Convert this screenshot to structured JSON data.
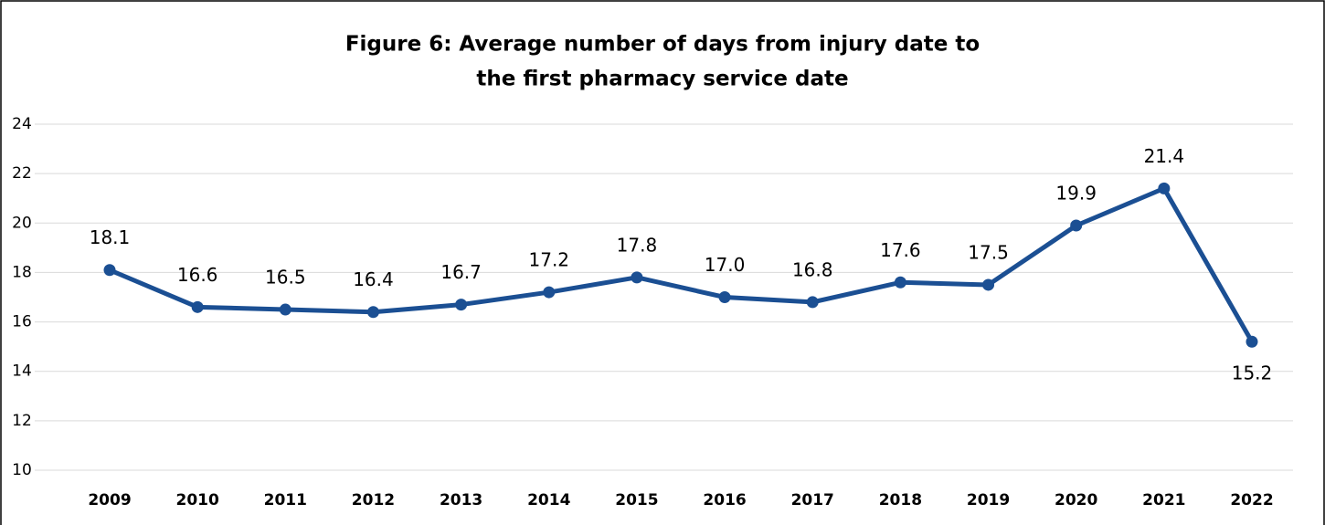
{
  "chart_data": {
    "type": "line",
    "title": [
      "Figure 6: Average number of days from injury date to",
      "the first pharmacy service date"
    ],
    "categories": [
      "2009",
      "2010",
      "2011",
      "2012",
      "2013",
      "2014",
      "2015",
      "2016",
      "2017",
      "2018",
      "2019",
      "2020",
      "2021",
      "2022"
    ],
    "series": [
      {
        "color": "#1b4f93",
        "values": [
          18.1,
          16.6,
          16.5,
          16.4,
          16.7,
          17.2,
          17.8,
          17.0,
          16.8,
          17.6,
          17.5,
          19.9,
          21.4,
          15.2
        ],
        "value_labels": [
          "18.1",
          "16.6",
          "16.5",
          "16.4",
          "16.7",
          "17.2",
          "17.8",
          "17.0",
          "16.8",
          "17.6",
          "17.5",
          "19.9",
          "21.4",
          "15.2"
        ]
      }
    ],
    "ylim": [
      10,
      24
    ],
    "yticks": [
      10,
      12,
      14,
      16,
      18,
      20,
      22,
      24
    ],
    "grid": true
  }
}
